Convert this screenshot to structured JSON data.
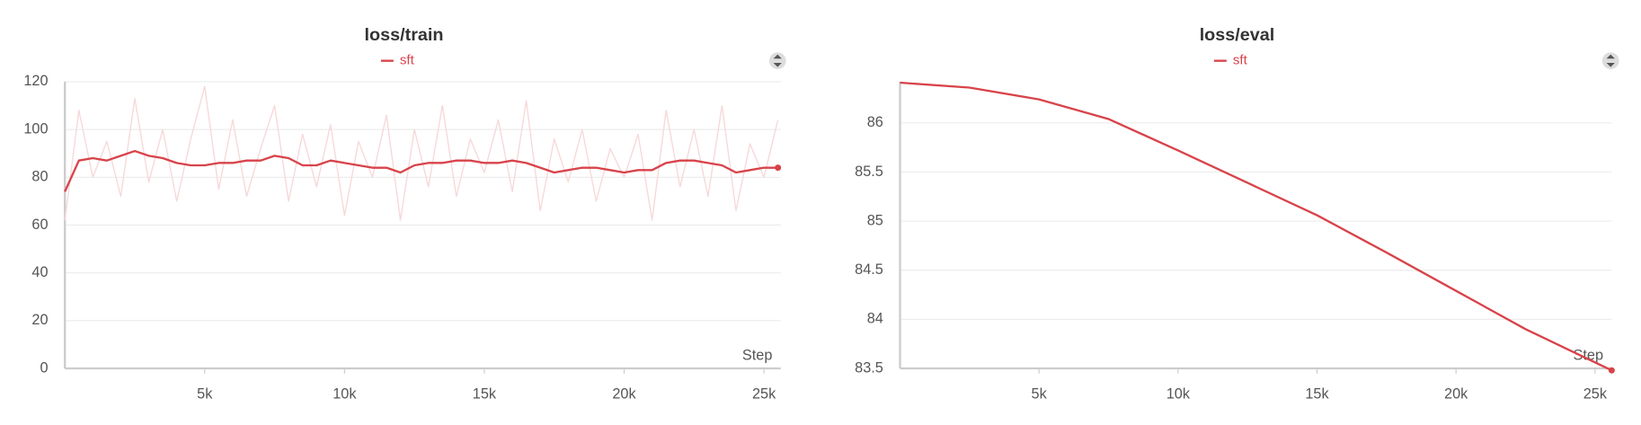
{
  "chart_data": [
    {
      "type": "line",
      "title": "loss/train",
      "xlabel": "Step",
      "x": [
        0,
        500,
        1000,
        1500,
        2000,
        2500,
        3000,
        3500,
        4000,
        4500,
        5000,
        5500,
        6000,
        6500,
        7000,
        7500,
        8000,
        8500,
        9000,
        9500,
        10000,
        10500,
        11000,
        11500,
        12000,
        12500,
        13000,
        13500,
        14000,
        14500,
        15000,
        15500,
        16000,
        16500,
        17000,
        17500,
        18000,
        18500,
        19000,
        19500,
        20000,
        20500,
        21000,
        21500,
        22000,
        22500,
        23000,
        23500,
        24000,
        24500,
        25000,
        25500
      ],
      "series": [
        {
          "name": "sft",
          "color": "#d8434a",
          "raw_color": "#f7d9da",
          "values": [
            74,
            87,
            88,
            87,
            89,
            91,
            89,
            88,
            86,
            85,
            85,
            86,
            86,
            87,
            87,
            89,
            88,
            85,
            85,
            87,
            86,
            85,
            84,
            84,
            82,
            85,
            86,
            86,
            87,
            87,
            86,
            86,
            87,
            86,
            84,
            82,
            83,
            84,
            84,
            83,
            82,
            83,
            83,
            86,
            87,
            87,
            86,
            85,
            82,
            83,
            84,
            84
          ],
          "raw_values": [
            62,
            108,
            80,
            95,
            72,
            113,
            78,
            100,
            70,
            96,
            118,
            75,
            104,
            72,
            92,
            110,
            70,
            98,
            76,
            102,
            64,
            95,
            80,
            106,
            62,
            100,
            76,
            110,
            72,
            96,
            82,
            104,
            74,
            112,
            66,
            96,
            78,
            100,
            70,
            92,
            80,
            98,
            62,
            108,
            76,
            100,
            72,
            110,
            66,
            94,
            80,
            104
          ]
        }
      ],
      "xlim": [
        0,
        25600
      ],
      "ylim": [
        0,
        120
      ],
      "xticks": [
        {
          "value": 5000,
          "label": "5k"
        },
        {
          "value": 10000,
          "label": "10k"
        },
        {
          "value": 15000,
          "label": "15k"
        },
        {
          "value": 20000,
          "label": "20k"
        },
        {
          "value": 25000,
          "label": "25k"
        }
      ],
      "yticks": [
        0,
        20,
        40,
        60,
        80,
        100,
        120
      ],
      "grid": true
    },
    {
      "type": "line",
      "title": "loss/eval",
      "xlabel": "Step",
      "x": [
        0,
        2500,
        5000,
        7500,
        10000,
        12500,
        15000,
        17500,
        20000,
        22500,
        25600
      ],
      "series": [
        {
          "name": "sft",
          "color": "#d8434a",
          "values": [
            86.41,
            86.36,
            86.24,
            86.04,
            85.72,
            85.39,
            85.06,
            84.68,
            84.29,
            83.9,
            83.48
          ]
        }
      ],
      "xlim": [
        0,
        25600
      ],
      "ylim": [
        83.5,
        86.42
      ],
      "xticks": [
        {
          "value": 5000,
          "label": "5k"
        },
        {
          "value": 10000,
          "label": "10k"
        },
        {
          "value": 15000,
          "label": "15k"
        },
        {
          "value": 20000,
          "label": "20k"
        },
        {
          "value": 25000,
          "label": "25k"
        }
      ],
      "yticks": [
        83.5,
        84,
        84.5,
        85,
        85.5,
        86
      ],
      "grid": true
    }
  ]
}
